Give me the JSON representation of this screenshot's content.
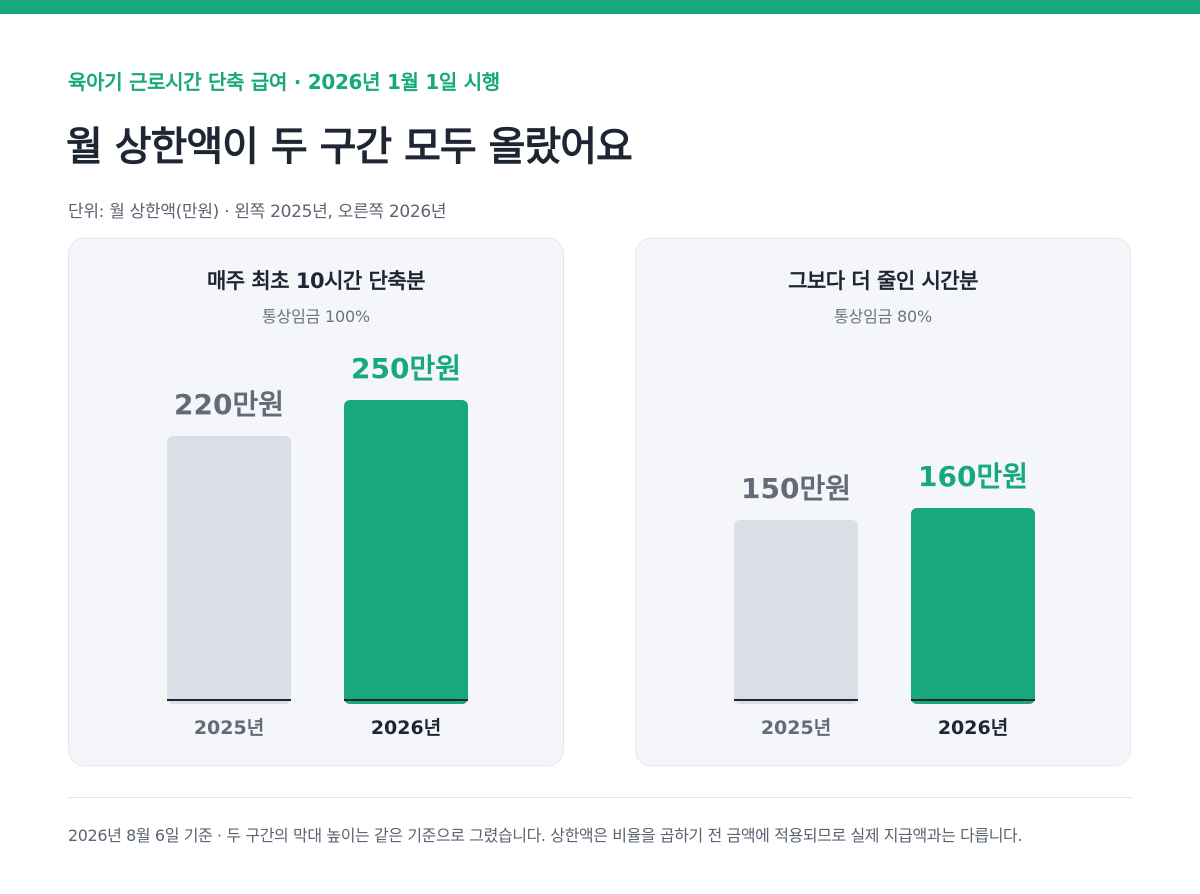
{
  "eyebrow": "육아기 근로시간 단축 급여 · 2026년 1월 1일 시행",
  "headline": "월 상한액이 두 구간 모두 올랐어요",
  "unit_note": "단위: 월 상한액(만원) · 왼쪽 2025년, 오른쪽 2026년",
  "footnote": "2026년 8월 6일 기준 · 두 구간의 막대 높이는 같은 기준으로 그렸습니다. 상한액은 비율을 곱하기 전 금액에 적용되므로 실제 지급액과는 다릅니다.",
  "colors": {
    "accent": "#17a97b",
    "bar_old": "#dadfe7",
    "label_old": "#646b77",
    "label_new": "#17a97b",
    "baseline": "#1f2633"
  },
  "chart_data": [
    {
      "type": "bar",
      "title": "매주 최초 10시간 단축분",
      "subtitle": "통상임금 100%",
      "categories": [
        "2025년",
        "2026년"
      ],
      "values": [
        220,
        250
      ],
      "value_labels": [
        "220만원",
        "250만원"
      ],
      "ylim": [
        0,
        250
      ],
      "grid": false
    },
    {
      "type": "bar",
      "title": "그보다 더 줄인 시간분",
      "subtitle": "통상임금 80%",
      "categories": [
        "2025년",
        "2026년"
      ],
      "values": [
        150,
        160
      ],
      "value_labels": [
        "150만원",
        "160만원"
      ],
      "ylim": [
        0,
        250
      ],
      "grid": false
    }
  ]
}
